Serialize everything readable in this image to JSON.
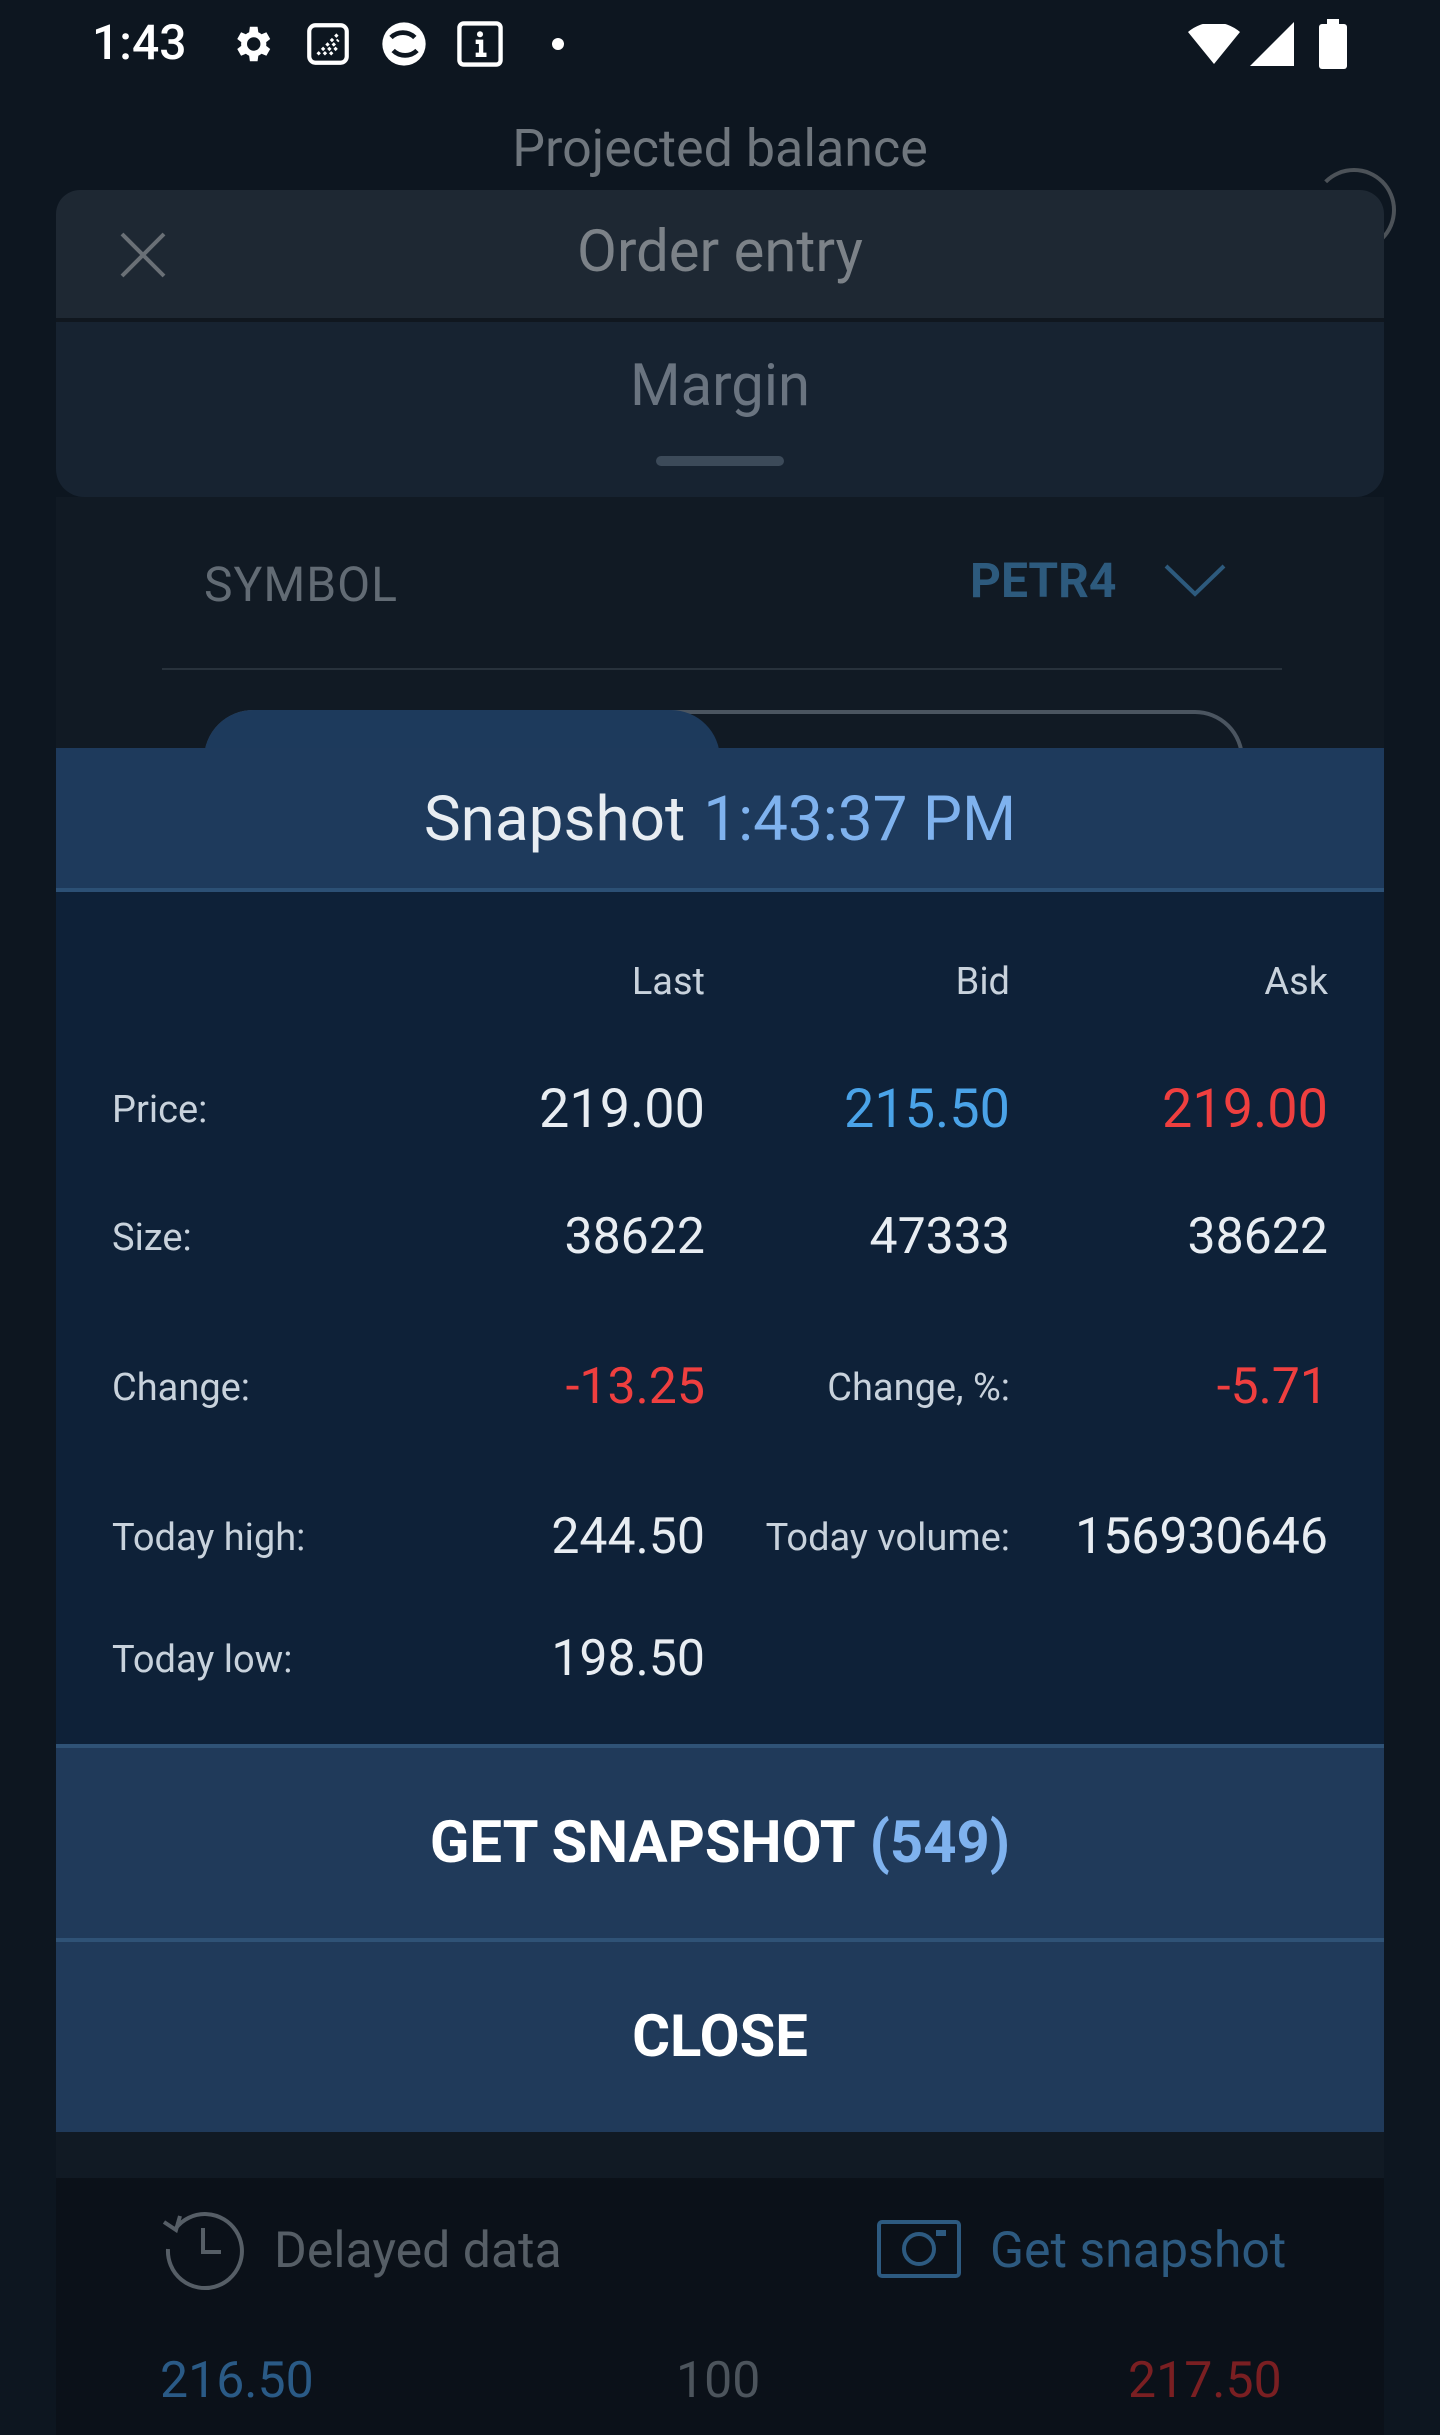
{
  "status_bar": {
    "time": "1:43"
  },
  "background": {
    "projected_balance": "Projected balance",
    "order_title": "Order entry",
    "margin_label": "Margin",
    "symbol_label": "SYMBOL",
    "symbol_value": "PETR4",
    "delayed_data": "Delayed data",
    "get_snapshot_link": "Get snapshot",
    "quote_bid": "216.50",
    "quote_size": "100",
    "quote_ask": "217.50"
  },
  "dialog": {
    "title": "Snapshot",
    "time": "1:43:37 PM",
    "columns": {
      "last": "Last",
      "bid": "Bid",
      "ask": "Ask"
    },
    "price": {
      "label": "Price:",
      "last": "219.00",
      "bid": "215.50",
      "ask": "219.00"
    },
    "size": {
      "label": "Size:",
      "last": "38622",
      "bid": "47333",
      "ask": "38622"
    },
    "change": {
      "label": "Change:",
      "value": "-13.25",
      "pct_label": "Change, %:",
      "pct_value": "-5.71"
    },
    "today_high": {
      "label": "Today high:",
      "value": "244.50"
    },
    "today_volume": {
      "label": "Today volume:",
      "value": "156930646"
    },
    "today_low": {
      "label": "Today low:",
      "value": "198.50"
    },
    "get_snapshot_button": "GET SNAPSHOT",
    "snapshot_count": "(549)",
    "close_button": "CLOSE"
  },
  "colors": {
    "bid": "#4aa3e8",
    "negative": "#ef3f3f",
    "accent": "#7fb2ee",
    "dialog_bg": "#0e2138",
    "header_bg": "#1e3a5c"
  }
}
